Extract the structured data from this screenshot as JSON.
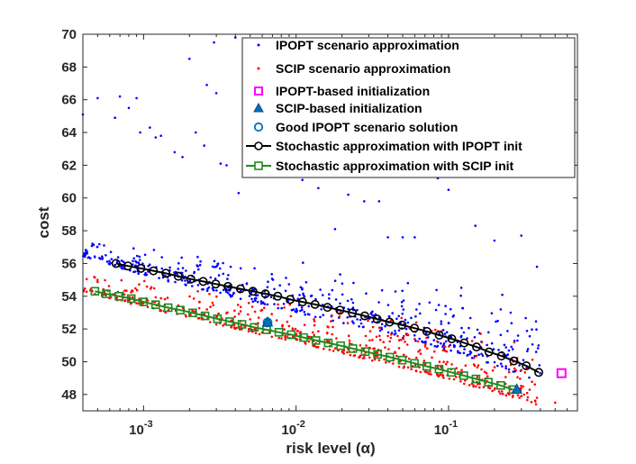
{
  "chart_data": {
    "type": "scatter",
    "xscale": "log",
    "xlabel": "risk level (α)",
    "ylabel": "cost",
    "xlim": [
      0.0004,
      0.7
    ],
    "ylim": [
      47,
      70
    ],
    "x_ticks": [
      {
        "value": 0.001,
        "base": "10",
        "exp": "-3"
      },
      {
        "value": 0.01,
        "base": "10",
        "exp": "-2"
      },
      {
        "value": 0.1,
        "base": "10",
        "exp": "-1"
      }
    ],
    "y_ticks": [
      48,
      50,
      52,
      54,
      56,
      58,
      60,
      62,
      64,
      66,
      68,
      70
    ],
    "legend_position": "top-right",
    "colors": {
      "ipopt_scatter": "#0000ff",
      "scip_scatter": "#ff0000",
      "ipopt_init": "#ff00ff",
      "scip_init": "#0072bd",
      "good_solution": "#0072bd",
      "sa_ipopt": "#000000",
      "sa_scip": "#1f8a1f"
    },
    "series": [
      {
        "name": "IPOPT scenario approximation",
        "kind": "scatter-dense",
        "trend": [
          [
            0.0004,
            56.7
          ],
          [
            0.001,
            55.6
          ],
          [
            0.003,
            54.6
          ],
          [
            0.01,
            53.5
          ],
          [
            0.03,
            52.6
          ],
          [
            0.1,
            51.4
          ],
          [
            0.3,
            50.0
          ],
          [
            0.4,
            49.4
          ]
        ],
        "outliers": [
          [
            0.0004,
            65.1
          ],
          [
            0.0005,
            66.1
          ],
          [
            0.00065,
            64.9
          ],
          [
            0.0007,
            66.2
          ],
          [
            0.0008,
            65.5
          ],
          [
            0.0009,
            66.1
          ],
          [
            0.00095,
            64.0
          ],
          [
            0.0011,
            64.3
          ],
          [
            0.0012,
            63.7
          ],
          [
            0.0013,
            63.8
          ],
          [
            0.0016,
            62.8
          ],
          [
            0.0018,
            62.5
          ],
          [
            0.002,
            68.5
          ],
          [
            0.0022,
            64.0
          ],
          [
            0.0025,
            63.2
          ],
          [
            0.0026,
            66.9
          ],
          [
            0.0029,
            69.5
          ],
          [
            0.003,
            66.4
          ],
          [
            0.0032,
            62.1
          ],
          [
            0.0035,
            62.0
          ],
          [
            0.004,
            69.8
          ],
          [
            0.0042,
            60.3
          ],
          [
            0.0055,
            65.2
          ],
          [
            0.0065,
            63.5
          ],
          [
            0.0085,
            62.7
          ],
          [
            0.011,
            61.1
          ],
          [
            0.014,
            60.6
          ],
          [
            0.018,
            58.1
          ],
          [
            0.022,
            60.2
          ],
          [
            0.028,
            59.8
          ],
          [
            0.035,
            59.8
          ],
          [
            0.04,
            57.6
          ],
          [
            0.05,
            57.6
          ],
          [
            0.06,
            57.6
          ],
          [
            0.07,
            61.7
          ],
          [
            0.085,
            61.2
          ],
          [
            0.1,
            60.5
          ],
          [
            0.15,
            58.3
          ],
          [
            0.2,
            57.4
          ],
          [
            0.3,
            57.7
          ],
          [
            0.38,
            55.8
          ]
        ]
      },
      {
        "name": "SCIP scenario approximation",
        "kind": "scatter-dense",
        "trend": [
          [
            0.0004,
            54.5
          ],
          [
            0.001,
            53.6
          ],
          [
            0.003,
            52.6
          ],
          [
            0.01,
            51.6
          ],
          [
            0.03,
            50.6
          ],
          [
            0.1,
            49.5
          ],
          [
            0.2,
            48.7
          ],
          [
            0.3,
            48.3
          ],
          [
            0.38,
            48.0
          ]
        ],
        "outliers": [
          [
            0.2,
            48.3
          ],
          [
            0.25,
            48.0
          ],
          [
            0.3,
            47.9
          ],
          [
            0.38,
            47.8
          ],
          [
            0.5,
            47.5
          ],
          [
            0.12,
            48.8
          ]
        ]
      },
      {
        "name": "IPOPT-based initialization",
        "kind": "marker-square",
        "points": [
          [
            0.55,
            49.3
          ]
        ]
      },
      {
        "name": "SCIP-based initialization",
        "kind": "marker-triangle",
        "points": [
          [
            0.28,
            48.3
          ],
          [
            0.0065,
            52.4
          ]
        ]
      },
      {
        "name": "Good IPOPT scenario solution",
        "kind": "marker-circle",
        "points": [
          [
            0.0065,
            52.4
          ]
        ]
      },
      {
        "name": "Stochastic approximation with IPOPT init",
        "kind": "line-circle",
        "x": [
          0.00066,
          0.00079,
          0.00096,
          0.00116,
          0.0014,
          0.00169,
          0.00204,
          0.00246,
          0.00297,
          0.00358,
          0.00432,
          0.00521,
          0.00629,
          0.00758,
          0.00915,
          0.01104,
          0.01332,
          0.01606,
          0.01938,
          0.02338,
          0.0282,
          0.03402,
          0.04105,
          0.04952,
          0.05974,
          0.07207,
          0.08694,
          0.1049,
          0.1265,
          0.1526,
          0.1841,
          0.2221,
          0.268,
          0.3233,
          0.39
        ],
        "y": [
          56.0,
          55.85,
          55.7,
          55.55,
          55.4,
          55.22,
          55.05,
          54.9,
          54.75,
          54.6,
          54.45,
          54.3,
          54.15,
          54.0,
          53.8,
          53.65,
          53.5,
          53.32,
          53.15,
          52.98,
          52.8,
          52.6,
          52.42,
          52.24,
          52.05,
          51.85,
          51.62,
          51.4,
          51.15,
          50.9,
          50.6,
          50.35,
          50.05,
          49.75,
          49.35
        ]
      },
      {
        "name": "Stochastic approximation with SCIP init",
        "kind": "line-square",
        "x": [
          0.00048,
          0.00057,
          0.00069,
          0.00083,
          0.001,
          0.0012,
          0.00145,
          0.00174,
          0.0021,
          0.00253,
          0.00305,
          0.00367,
          0.00442,
          0.00532,
          0.00641,
          0.00772,
          0.0093,
          0.0112,
          0.0135,
          0.01626,
          0.01958,
          0.02358,
          0.0284,
          0.0342,
          0.0412,
          0.0496,
          0.0598,
          0.072,
          0.0867,
          0.1044,
          0.1257,
          0.1514,
          0.1824,
          0.2196,
          0.2645
        ],
        "y": [
          54.3,
          54.15,
          54.0,
          53.85,
          53.65,
          53.48,
          53.3,
          53.15,
          52.98,
          52.8,
          52.62,
          52.45,
          52.28,
          52.1,
          51.95,
          51.8,
          51.65,
          51.48,
          51.3,
          51.15,
          50.98,
          50.8,
          50.62,
          50.45,
          50.28,
          50.1,
          49.9,
          49.72,
          49.55,
          49.35,
          49.15,
          48.95,
          48.75,
          48.55,
          48.3
        ]
      }
    ]
  }
}
